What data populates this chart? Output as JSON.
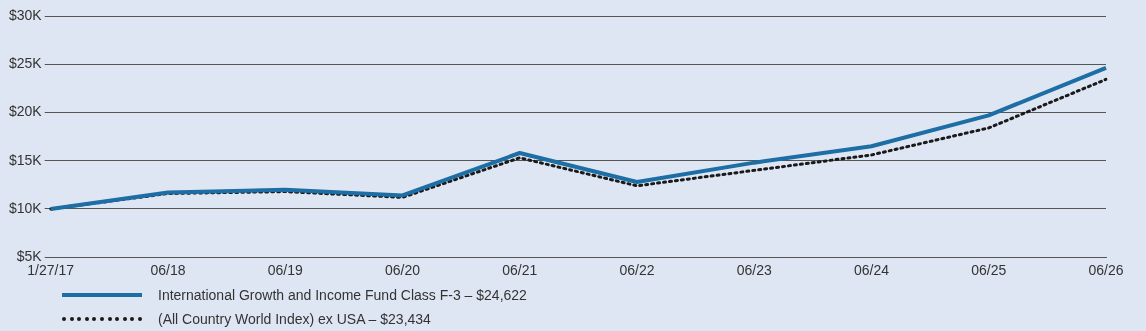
{
  "chart_data": {
    "type": "line",
    "categories": [
      "1/27/17",
      "06/18",
      "06/19",
      "06/20",
      "06/21",
      "06/22",
      "06/23",
      "06/24",
      "06/25",
      "06/26"
    ],
    "series": [
      {
        "name": "International Growth and Income Fund Class F-3 – $24,622",
        "color": "#1c6ea4",
        "line_style": "solid",
        "values": [
          10000,
          11700,
          12000,
          11400,
          15800,
          12800,
          14800,
          16500,
          19700,
          24622
        ]
      },
      {
        "name": "(All Country World Index) ex USA – $23,434",
        "color": "#1a1a1a",
        "line_style": "dotted",
        "values": [
          10000,
          11600,
          11800,
          11200,
          15300,
          12400,
          14000,
          15600,
          18400,
          23434
        ]
      }
    ],
    "ylim": [
      5000,
      30000
    ],
    "yticks": [
      {
        "value": 5000,
        "label": "$5K"
      },
      {
        "value": 10000,
        "label": "$10K"
      },
      {
        "value": 15000,
        "label": "$15K"
      },
      {
        "value": 20000,
        "label": "$20K"
      },
      {
        "value": 25000,
        "label": "$25K"
      },
      {
        "value": 30000,
        "label": "$30K"
      }
    ],
    "grid": "y",
    "legend": "bottom left",
    "marker": "none"
  }
}
